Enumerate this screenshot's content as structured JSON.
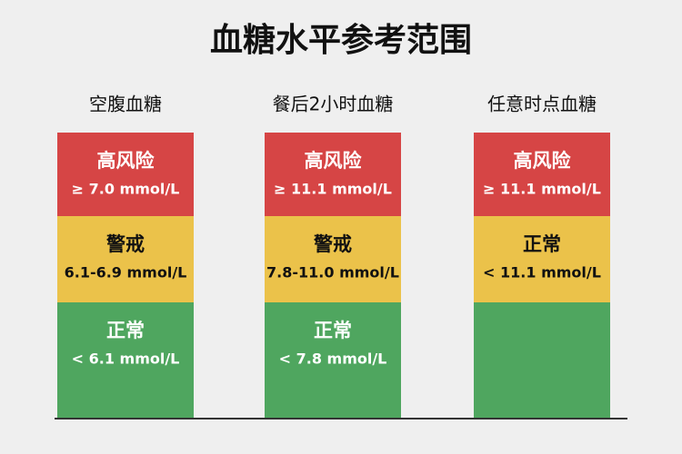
{
  "title": "血糖水平参考范围",
  "columns": [
    {
      "header": "空腹血糖",
      "segments": [
        {
          "label": "高风险",
          "range": "≥ 7.0 mmol/L",
          "color": "#d64545"
        },
        {
          "label": "警戒",
          "range": "6.1-6.9 mmol/L",
          "color": "#ebc24a"
        },
        {
          "label": "正常",
          "range": "< 6.1 mmol/L",
          "color": "#4fa65f"
        }
      ]
    },
    {
      "header": "餐后2小时血糖",
      "segments": [
        {
          "label": "高风险",
          "range": "≥ 11.1 mmol/L",
          "color": "#d64545"
        },
        {
          "label": "警戒",
          "range": "7.8-11.0 mmol/L",
          "color": "#ebc24a"
        },
        {
          "label": "正常",
          "range": "< 7.8 mmol/L",
          "color": "#4fa65f"
        }
      ]
    },
    {
      "header": "任意时点血糖",
      "segments": [
        {
          "label": "高风险",
          "range": "≥ 11.1 mmol/L",
          "color": "#d64545"
        },
        {
          "label": "正常",
          "range": "< 11.1 mmol/L",
          "color": "#ebc24a"
        },
        {
          "color": "#4fa65f"
        }
      ]
    }
  ]
}
